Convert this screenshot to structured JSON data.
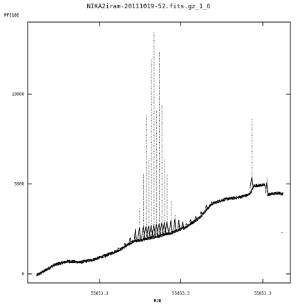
{
  "chart_data": {
    "type": "scatter",
    "title": "NIKA2iram-20111019-52.fits.gz_1_6",
    "ylabel": "PF[10]",
    "xlabel": "MJD",
    "xlim": [
      0,
      1
    ],
    "ylim": [
      -500,
      14000
    ],
    "yticks": [
      {
        "value": 0,
        "label": "0"
      },
      {
        "value": 5000,
        "label": "5000"
      },
      {
        "value": 10000,
        "label": "10000"
      }
    ],
    "xticks": [
      {
        "value": 0.274,
        "label": "55853.3"
      },
      {
        "value": 0.583,
        "label": "55853.3"
      },
      {
        "value": 0.895,
        "label": "55853.3"
      }
    ],
    "baseline": [
      [
        0.033,
        -80
      ],
      [
        0.06,
        150
      ],
      [
        0.1,
        500
      ],
      [
        0.15,
        700
      ],
      [
        0.2,
        650
      ],
      [
        0.25,
        800
      ],
      [
        0.3,
        1050
      ],
      [
        0.35,
        1350
      ],
      [
        0.4,
        1800
      ],
      [
        0.45,
        1950
      ],
      [
        0.5,
        2100
      ],
      [
        0.55,
        2300
      ],
      [
        0.6,
        2600
      ],
      [
        0.65,
        3100
      ],
      [
        0.7,
        3900
      ],
      [
        0.75,
        4150
      ],
      [
        0.8,
        4250
      ],
      [
        0.84,
        4400
      ],
      [
        0.85,
        4600
      ],
      [
        0.86,
        4900
      ],
      [
        0.9,
        4950
      ],
      [
        0.91,
        4400
      ],
      [
        0.95,
        4500
      ],
      [
        0.97,
        4450
      ]
    ],
    "spikes": [
      {
        "x": 0.295,
        "peak": 900
      },
      {
        "x": 0.32,
        "peak": 1100
      },
      {
        "x": 0.345,
        "peak": 1450
      },
      {
        "x": 0.37,
        "peak": 1700
      },
      {
        "x": 0.39,
        "peak": 2000
      },
      {
        "x": 0.41,
        "peak": 2500
      },
      {
        "x": 0.425,
        "peak": 3700
      },
      {
        "x": 0.44,
        "peak": 5600
      },
      {
        "x": 0.45,
        "peak": 8900
      },
      {
        "x": 0.46,
        "peak": 6400
      },
      {
        "x": 0.47,
        "peak": 11900
      },
      {
        "x": 0.48,
        "peak": 13500
      },
      {
        "x": 0.49,
        "peak": 9100
      },
      {
        "x": 0.5,
        "peak": 12400
      },
      {
        "x": 0.51,
        "peak": 9400
      },
      {
        "x": 0.52,
        "peak": 6400
      },
      {
        "x": 0.53,
        "peak": 5500
      },
      {
        "x": 0.545,
        "peak": 4100
      },
      {
        "x": 0.56,
        "peak": 3300
      },
      {
        "x": 0.575,
        "peak": 3000
      },
      {
        "x": 0.59,
        "peak": 2900
      },
      {
        "x": 0.605,
        "peak": 2800
      },
      {
        "x": 0.62,
        "peak": 3000
      },
      {
        "x": 0.64,
        "peak": 3200
      },
      {
        "x": 0.66,
        "peak": 3450
      },
      {
        "x": 0.68,
        "peak": 3800
      },
      {
        "x": 0.7,
        "peak": 4000
      },
      {
        "x": 0.853,
        "peak": 8600
      },
      {
        "x": 0.91,
        "peak": 5300
      }
    ],
    "outliers": [
      [
        0.968,
        2300
      ]
    ],
    "grid": false
  }
}
